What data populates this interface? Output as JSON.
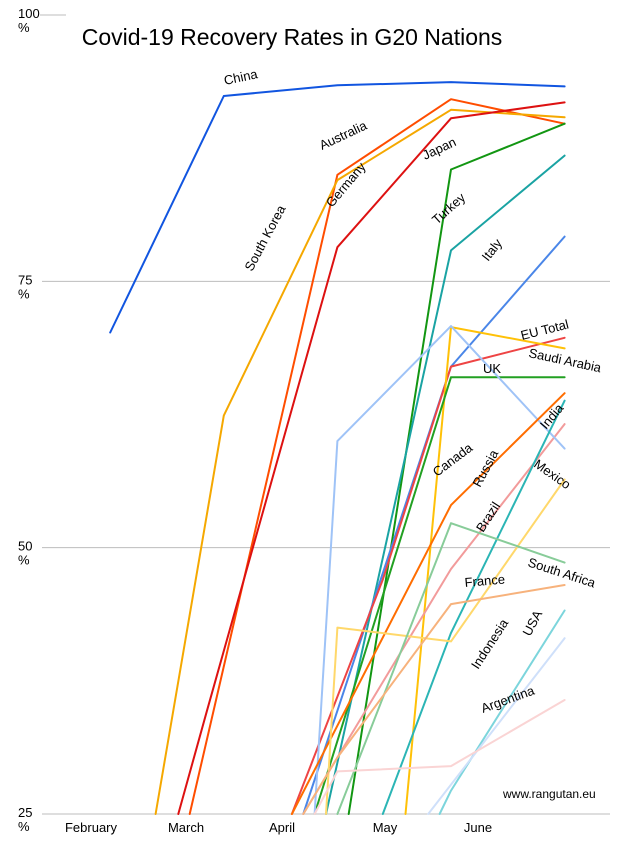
{
  "chart_data": {
    "type": "line",
    "title": "Covid-19 Recovery Rates in G20 Nations",
    "credit": "www.rangutan.eu",
    "x_labels": [
      "February",
      "March",
      "April",
      "May",
      "June"
    ],
    "y_ticks": [
      {
        "value": 25,
        "text": "25",
        "unit": "%"
      },
      {
        "value": 50,
        "text": "50",
        "unit": "%"
      },
      {
        "value": 75,
        "text": "75",
        "unit": "%"
      },
      {
        "value": 100,
        "text": "100",
        "unit": "%"
      }
    ],
    "ylim": [
      25,
      100
    ],
    "xlim": [
      0,
      5
    ],
    "grid": true,
    "series": [
      {
        "name": "China",
        "color": "#1155e0",
        "points": [
          [
            0.6,
            70.2
          ],
          [
            1.6,
            92.4
          ],
          [
            2.6,
            93.4
          ],
          [
            3.6,
            93.7
          ],
          [
            4.6,
            93.3
          ]
        ]
      },
      {
        "name": "Australia",
        "color": "#ff4d00",
        "points": [
          [
            1.3,
            25.0
          ],
          [
            2.6,
            85.0
          ],
          [
            3.6,
            92.1
          ],
          [
            4.6,
            89.8
          ]
        ]
      },
      {
        "name": "South Korea",
        "color": "#f5a800",
        "points": [
          [
            1.0,
            25.0
          ],
          [
            1.6,
            62.4
          ],
          [
            2.6,
            84.5
          ],
          [
            3.6,
            91.1
          ],
          [
            4.6,
            90.4
          ]
        ]
      },
      {
        "name": "Germany",
        "color": "#dd1111",
        "points": [
          [
            1.2,
            25.0
          ],
          [
            1.45,
            34.6
          ],
          [
            2.6,
            78.2
          ],
          [
            3.6,
            90.3
          ],
          [
            4.6,
            91.8
          ]
        ]
      },
      {
        "name": "Japan",
        "color": "#129612",
        "points": [
          [
            2.7,
            25.0
          ],
          [
            3.6,
            85.5
          ],
          [
            4.6,
            89.8
          ]
        ]
      },
      {
        "name": "Turkey",
        "color": "#1aa3a3",
        "points": [
          [
            2.5,
            25.0
          ],
          [
            3.6,
            77.9
          ],
          [
            4.6,
            86.8
          ]
        ]
      },
      {
        "name": "Italy",
        "color": "#4a86e8",
        "points": [
          [
            2.3,
            25.0
          ],
          [
            3.6,
            67.0
          ],
          [
            4.6,
            79.2
          ]
        ]
      },
      {
        "name": "EU Total",
        "color": "#ee4444",
        "points": [
          [
            2.2,
            25.0
          ],
          [
            3.0,
            47.0
          ],
          [
            3.6,
            67.0
          ],
          [
            4.6,
            69.7
          ]
        ]
      },
      {
        "name": "Saudi Arabia",
        "color": "#ffc107",
        "points": [
          [
            3.2,
            25.0
          ],
          [
            3.6,
            70.7
          ],
          [
            4.6,
            68.7
          ]
        ]
      },
      {
        "name": "UK",
        "color": "#22a022",
        "points": [
          [
            2.4,
            25.0
          ],
          [
            3.6,
            66.0
          ],
          [
            4.6,
            66.0
          ]
        ]
      },
      {
        "name": "India",
        "color": "#f29b9b",
        "points": [
          [
            2.3,
            25.0
          ],
          [
            3.6,
            48.0
          ],
          [
            4.6,
            61.6
          ]
        ]
      },
      {
        "name": "Mexico",
        "color": "#9fc3f7",
        "points": [
          [
            2.4,
            25.0
          ],
          [
            2.6,
            60.0
          ],
          [
            3.6,
            70.8
          ],
          [
            4.6,
            59.3
          ]
        ]
      },
      {
        "name": "Canada",
        "color": "#ff6d00",
        "points": [
          [
            2.2,
            25.0
          ],
          [
            3.6,
            54.0
          ],
          [
            4.6,
            64.5
          ]
        ]
      },
      {
        "name": "Russia",
        "color": "#2bb5b5",
        "points": [
          [
            3.0,
            25.0
          ],
          [
            3.6,
            42.0
          ],
          [
            4.6,
            63.8
          ]
        ]
      },
      {
        "name": "Brazil",
        "color": "#ffd86b",
        "points": [
          [
            2.5,
            25.0
          ],
          [
            2.6,
            42.5
          ],
          [
            3.6,
            41.2
          ],
          [
            4.6,
            56.4
          ]
        ]
      },
      {
        "name": "South Africa",
        "color": "#88cc99",
        "points": [
          [
            2.6,
            25.0
          ],
          [
            3.6,
            52.3
          ],
          [
            4.6,
            48.6
          ]
        ]
      },
      {
        "name": "France",
        "color": "#f7b27c",
        "points": [
          [
            2.3,
            25.0
          ],
          [
            2.6,
            30.3
          ],
          [
            3.6,
            44.7
          ],
          [
            4.6,
            46.5
          ]
        ]
      },
      {
        "name": "Indonesia",
        "color": "#7cd5dc",
        "points": [
          [
            3.5,
            25.0
          ],
          [
            3.6,
            27.2
          ],
          [
            4.6,
            44.1
          ]
        ]
      },
      {
        "name": "USA",
        "color": "#cfe0fa",
        "points": [
          [
            3.4,
            25.0
          ],
          [
            4.6,
            41.5
          ]
        ]
      },
      {
        "name": "Argentina",
        "color": "#fad4d4",
        "points": [
          [
            2.4,
            25.0
          ],
          [
            2.6,
            29.0
          ],
          [
            3.6,
            29.5
          ],
          [
            4.6,
            35.7
          ]
        ]
      }
    ]
  }
}
